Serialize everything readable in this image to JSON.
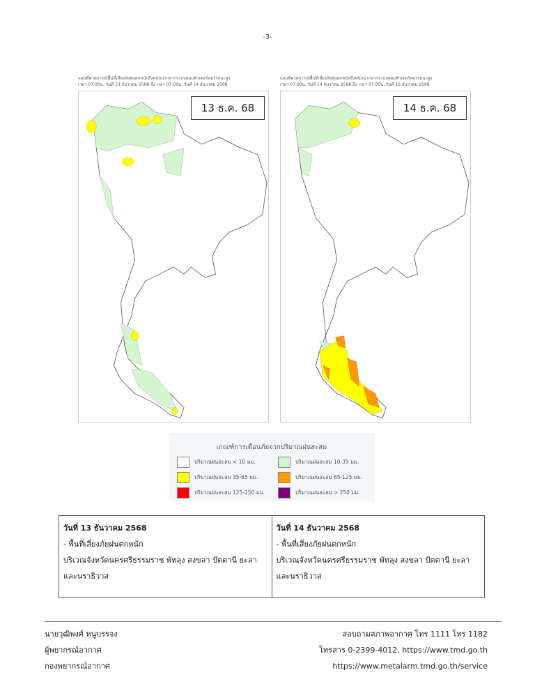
{
  "page_number": "-3-",
  "maps": [
    {
      "header_line1": "แผนที่คาดการณ์พื้นที่เสี่ยงภัยฝนตกหนักถึงหนักมากจากระบบคอมพิวเตอร์สมรรถนะสูง",
      "header_line2": "เวลา 07:00น. วันที่ 13 ธันวาคม 2568 ถึง เวลา 07:00น. วันที่ 14 ธันวาคม 2568",
      "date_label": "13 ธ.ค. 68"
    },
    {
      "header_line1": "แผนที่คาดการณ์พื้นที่เสี่ยงภัยฝนตกหนักถึงหนักมากจากระบบคอมพิวเตอร์สมรรถนะสูง",
      "header_line2": "เวลา 07:00น. วันที่ 14 ธันวาคม 2568 ถึง เวลา 07:00น. วันที่ 15 ธันวาคม 2568",
      "date_label": "14 ธ.ค. 68"
    }
  ],
  "legend": {
    "title": "เกณฑ์การเตือนภัยจากปริมาณฝนสะสม",
    "items": [
      {
        "label": "ปริมาณฝนสะสม < 10 มม.",
        "color": "#ffffff"
      },
      {
        "label": "ปริมาณฝนสะสม 10-35 มม.",
        "color": "#d4f5cf"
      },
      {
        "label": "ปริมาณฝนสะสม 35-65 มม.",
        "color": "#ffff00"
      },
      {
        "label": "ปริมาณฝนสะสม 65-125 มม.",
        "color": "#ff9900"
      },
      {
        "label": "ปริมาณฝนสะสม 125-250 มม.",
        "color": "#ff0000"
      },
      {
        "label": "ปริมาณฝนสะสม > 250 มม.",
        "color": "#7f007f"
      }
    ]
  },
  "forecast": [
    {
      "date": "วันที่ 13 ธันวาคม 2568",
      "risk": "- พื้นที่เสี่ยงภัยฝนตกหนัก",
      "area": "บริเวณจังหวัดนครศรีธรรมราช พัทลุง สงขลา ปัตตานี ยะลา และนราธิวาส"
    },
    {
      "date": "วันที่ 14 ธันวาคม 2568",
      "risk": "- พื้นที่เสี่ยงภัยฝนตกหนัก",
      "area": "บริเวณจังหวัดนครศรีธรรมราช พัทลุง สงขลา ปัตตานี ยะลา และนราธิวาส"
    }
  ],
  "footer": {
    "left": [
      "นายวุฒิพงศ์ หนูบรรจง",
      "ผู้พยากรณ์อากาศ",
      "กองพยากรณ์อากาศ"
    ],
    "right": [
      "สอบถามสภาพอากาศ โทร 1111 โทร 1182",
      "โทรสาร 0-2399-4012, https://www.tmd.go.th",
      "https://www.metalarm.tmd.go.th/service"
    ]
  }
}
